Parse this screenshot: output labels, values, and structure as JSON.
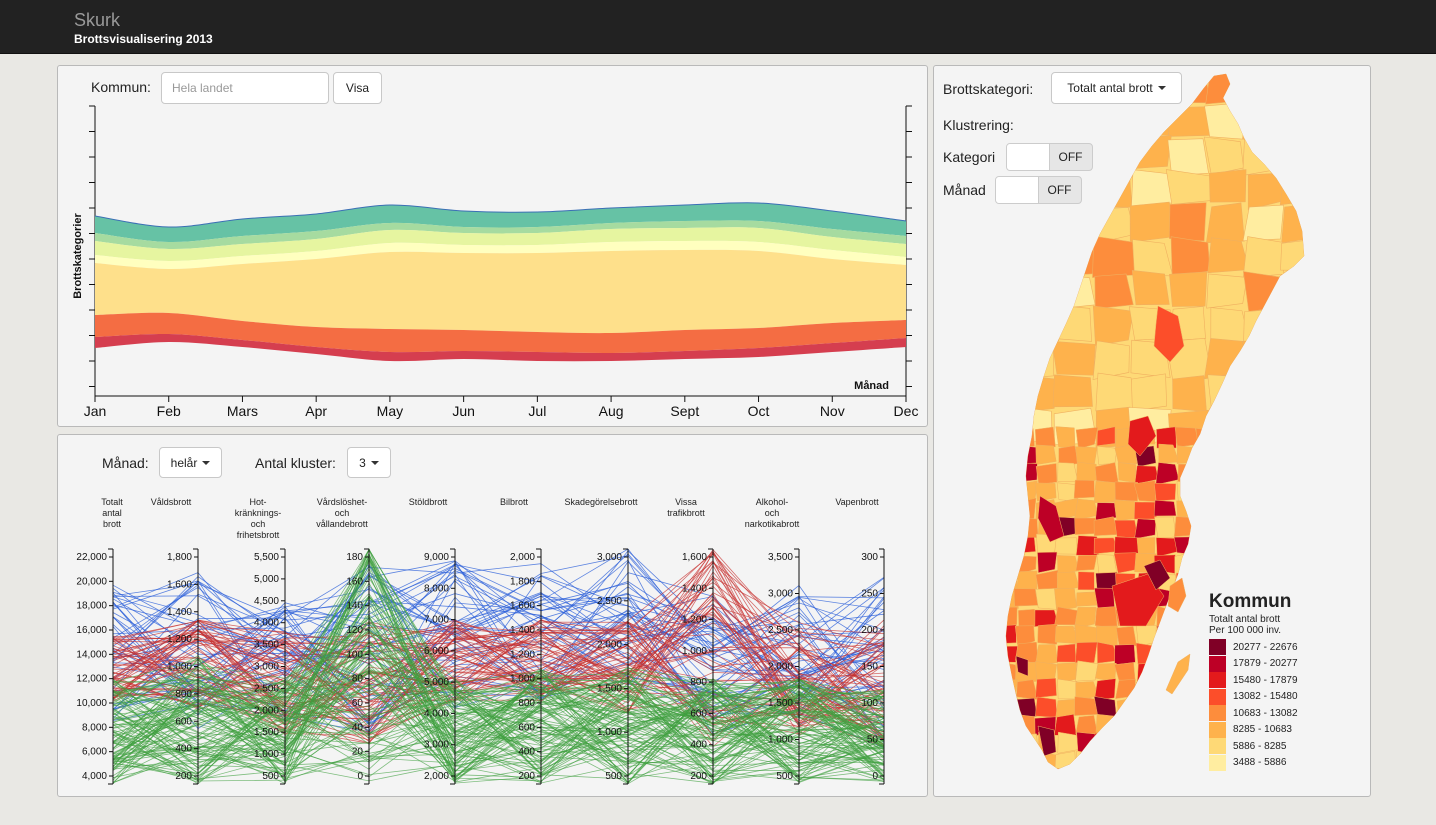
{
  "header": {
    "brand": "Skurk",
    "subtitle": "Brottsvisualisering 2013"
  },
  "streamgraph": {
    "kommun_label": "Kommun:",
    "kommun_placeholder": "Hela landet",
    "visa_label": "Visa",
    "y_axis_label": "Brottskategorier",
    "x_axis_label": "Månad",
    "months": [
      "Jan",
      "Feb",
      "Mars",
      "Apr",
      "May",
      "Jun",
      "Jul",
      "Aug",
      "Sept",
      "Oct",
      "Nov",
      "Dec"
    ],
    "layer_colors": [
      "#66c2a5",
      "#a6dba0",
      "#e6f5a0",
      "#ffffbf",
      "#fee08b",
      "#f46d43",
      "#d53e4f"
    ]
  },
  "parallel": {
    "month_label": "Månad:",
    "month_value": "helår",
    "clusters_label": "Antal kluster:",
    "clusters_value": "3",
    "axes": [
      {
        "name": "Totalt antal brott",
        "lines": [
          "Totalt",
          "antal",
          "brott"
        ],
        "ticks": [
          "22,000",
          "20,000",
          "18,000",
          "16,000",
          "14,000",
          "12,000",
          "10,000",
          "8,000",
          "6,000",
          "4,000"
        ]
      },
      {
        "name": "Våldsbrott",
        "lines": [
          "Våldsbrott"
        ],
        "ticks": [
          "1,800",
          "1,600",
          "1,400",
          "1,200",
          "1,000",
          "800",
          "600",
          "400",
          "200"
        ]
      },
      {
        "name": "Hot- kränknings- och frihetsbrott",
        "lines": [
          "Hot-",
          "kränknings-",
          "och",
          "frihetsbrott"
        ],
        "ticks": [
          "5,500",
          "5,000",
          "4,500",
          "4,000",
          "3,500",
          "3,000",
          "2,500",
          "2,000",
          "1,500",
          "1,000",
          "500"
        ]
      },
      {
        "name": "Vårdslöshet- och vållandebrott",
        "lines": [
          "Vårdslöshet-",
          "och",
          "vållandebrott"
        ],
        "ticks": [
          "180",
          "160",
          "140",
          "120",
          "100",
          "80",
          "60",
          "40",
          "20",
          "0"
        ]
      },
      {
        "name": "Stöldbrott",
        "lines": [
          "Stöldbrott"
        ],
        "ticks": [
          "9,000",
          "8,000",
          "7,000",
          "6,000",
          "5,000",
          "4,000",
          "3,000",
          "2,000"
        ]
      },
      {
        "name": "Bilbrott",
        "lines": [
          "Bilbrott"
        ],
        "ticks": [
          "2,000",
          "1,800",
          "1,600",
          "1,400",
          "1,200",
          "1,000",
          "800",
          "600",
          "400",
          "200"
        ]
      },
      {
        "name": "Skadegörelsebrott",
        "lines": [
          "Skadegörelsebrott"
        ],
        "ticks": [
          "3,000",
          "2,500",
          "2,000",
          "1,500",
          "1,000",
          "500"
        ]
      },
      {
        "name": "Vissa trafikbrott",
        "lines": [
          "Vissa",
          "trafikbrott"
        ],
        "ticks": [
          "1,600",
          "1,400",
          "1,200",
          "1,000",
          "800",
          "600",
          "400",
          "200"
        ]
      },
      {
        "name": "Alkohol- och narkotikabrott",
        "lines": [
          "Alkohol-",
          "och",
          "narkotikabrott"
        ],
        "ticks": [
          "3,500",
          "3,000",
          "2,500",
          "2,000",
          "1,500",
          "1,000",
          "500"
        ]
      },
      {
        "name": "Vapenbrott",
        "lines": [
          "Vapenbrott"
        ],
        "ticks": [
          "300",
          "250",
          "200",
          "150",
          "100",
          "50",
          "0"
        ]
      }
    ],
    "cluster_colors": [
      "#2b5fd9",
      "#c8302f",
      "#3f9f3f"
    ]
  },
  "map": {
    "category_label": "Brottskategori:",
    "category_value": "Totalt antal brott",
    "clustering_label": "Klustrering:",
    "kategori_label": "Kategori",
    "kategori_toggle": "OFF",
    "manad_label": "Månad",
    "manad_toggle": "OFF",
    "legend_title": "Kommun",
    "legend_sub1": "Totalt antal brott",
    "legend_sub2": "Per 100 000 inv.",
    "legend": [
      {
        "range": "20277 - 22676",
        "color": "#800026"
      },
      {
        "range": "17879 - 20277",
        "color": "#bd0026"
      },
      {
        "range": "15480 - 17879",
        "color": "#e31a1c"
      },
      {
        "range": "13082 - 15480",
        "color": "#fc4e2a"
      },
      {
        "range": "10683 - 13082",
        "color": "#fd8d3c"
      },
      {
        "range": "8285 - 10683",
        "color": "#feb24c"
      },
      {
        "range": "5886 - 8285",
        "color": "#fed976"
      },
      {
        "range": "3488 - 5886",
        "color": "#ffeda0"
      }
    ]
  }
}
